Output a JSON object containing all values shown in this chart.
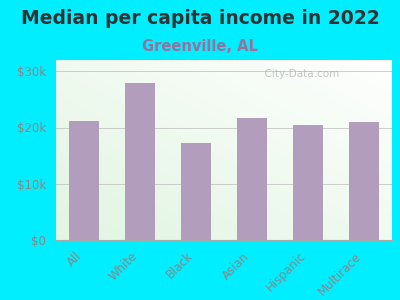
{
  "title": "Median per capita income in 2022",
  "subtitle": "Greenville, AL",
  "categories": [
    "All",
    "White",
    "Black",
    "Asian",
    "Hispanic",
    "Multirace"
  ],
  "values": [
    21200,
    28000,
    17200,
    21700,
    20500,
    21000
  ],
  "bar_color": "#b39dbd",
  "background_outer": "#00eeff",
  "title_color": "#333333",
  "subtitle_color": "#9c6e9c",
  "tick_color": "#888888",
  "ylabel_ticks": [
    "$0",
    "$10k",
    "$20k",
    "$30k"
  ],
  "ylabel_values": [
    0,
    10000,
    20000,
    30000
  ],
  "ylim": [
    0,
    32000
  ],
  "watermark": "  City-Data.com",
  "title_fontsize": 13.5,
  "subtitle_fontsize": 10.5,
  "tick_fontsize": 8.5
}
